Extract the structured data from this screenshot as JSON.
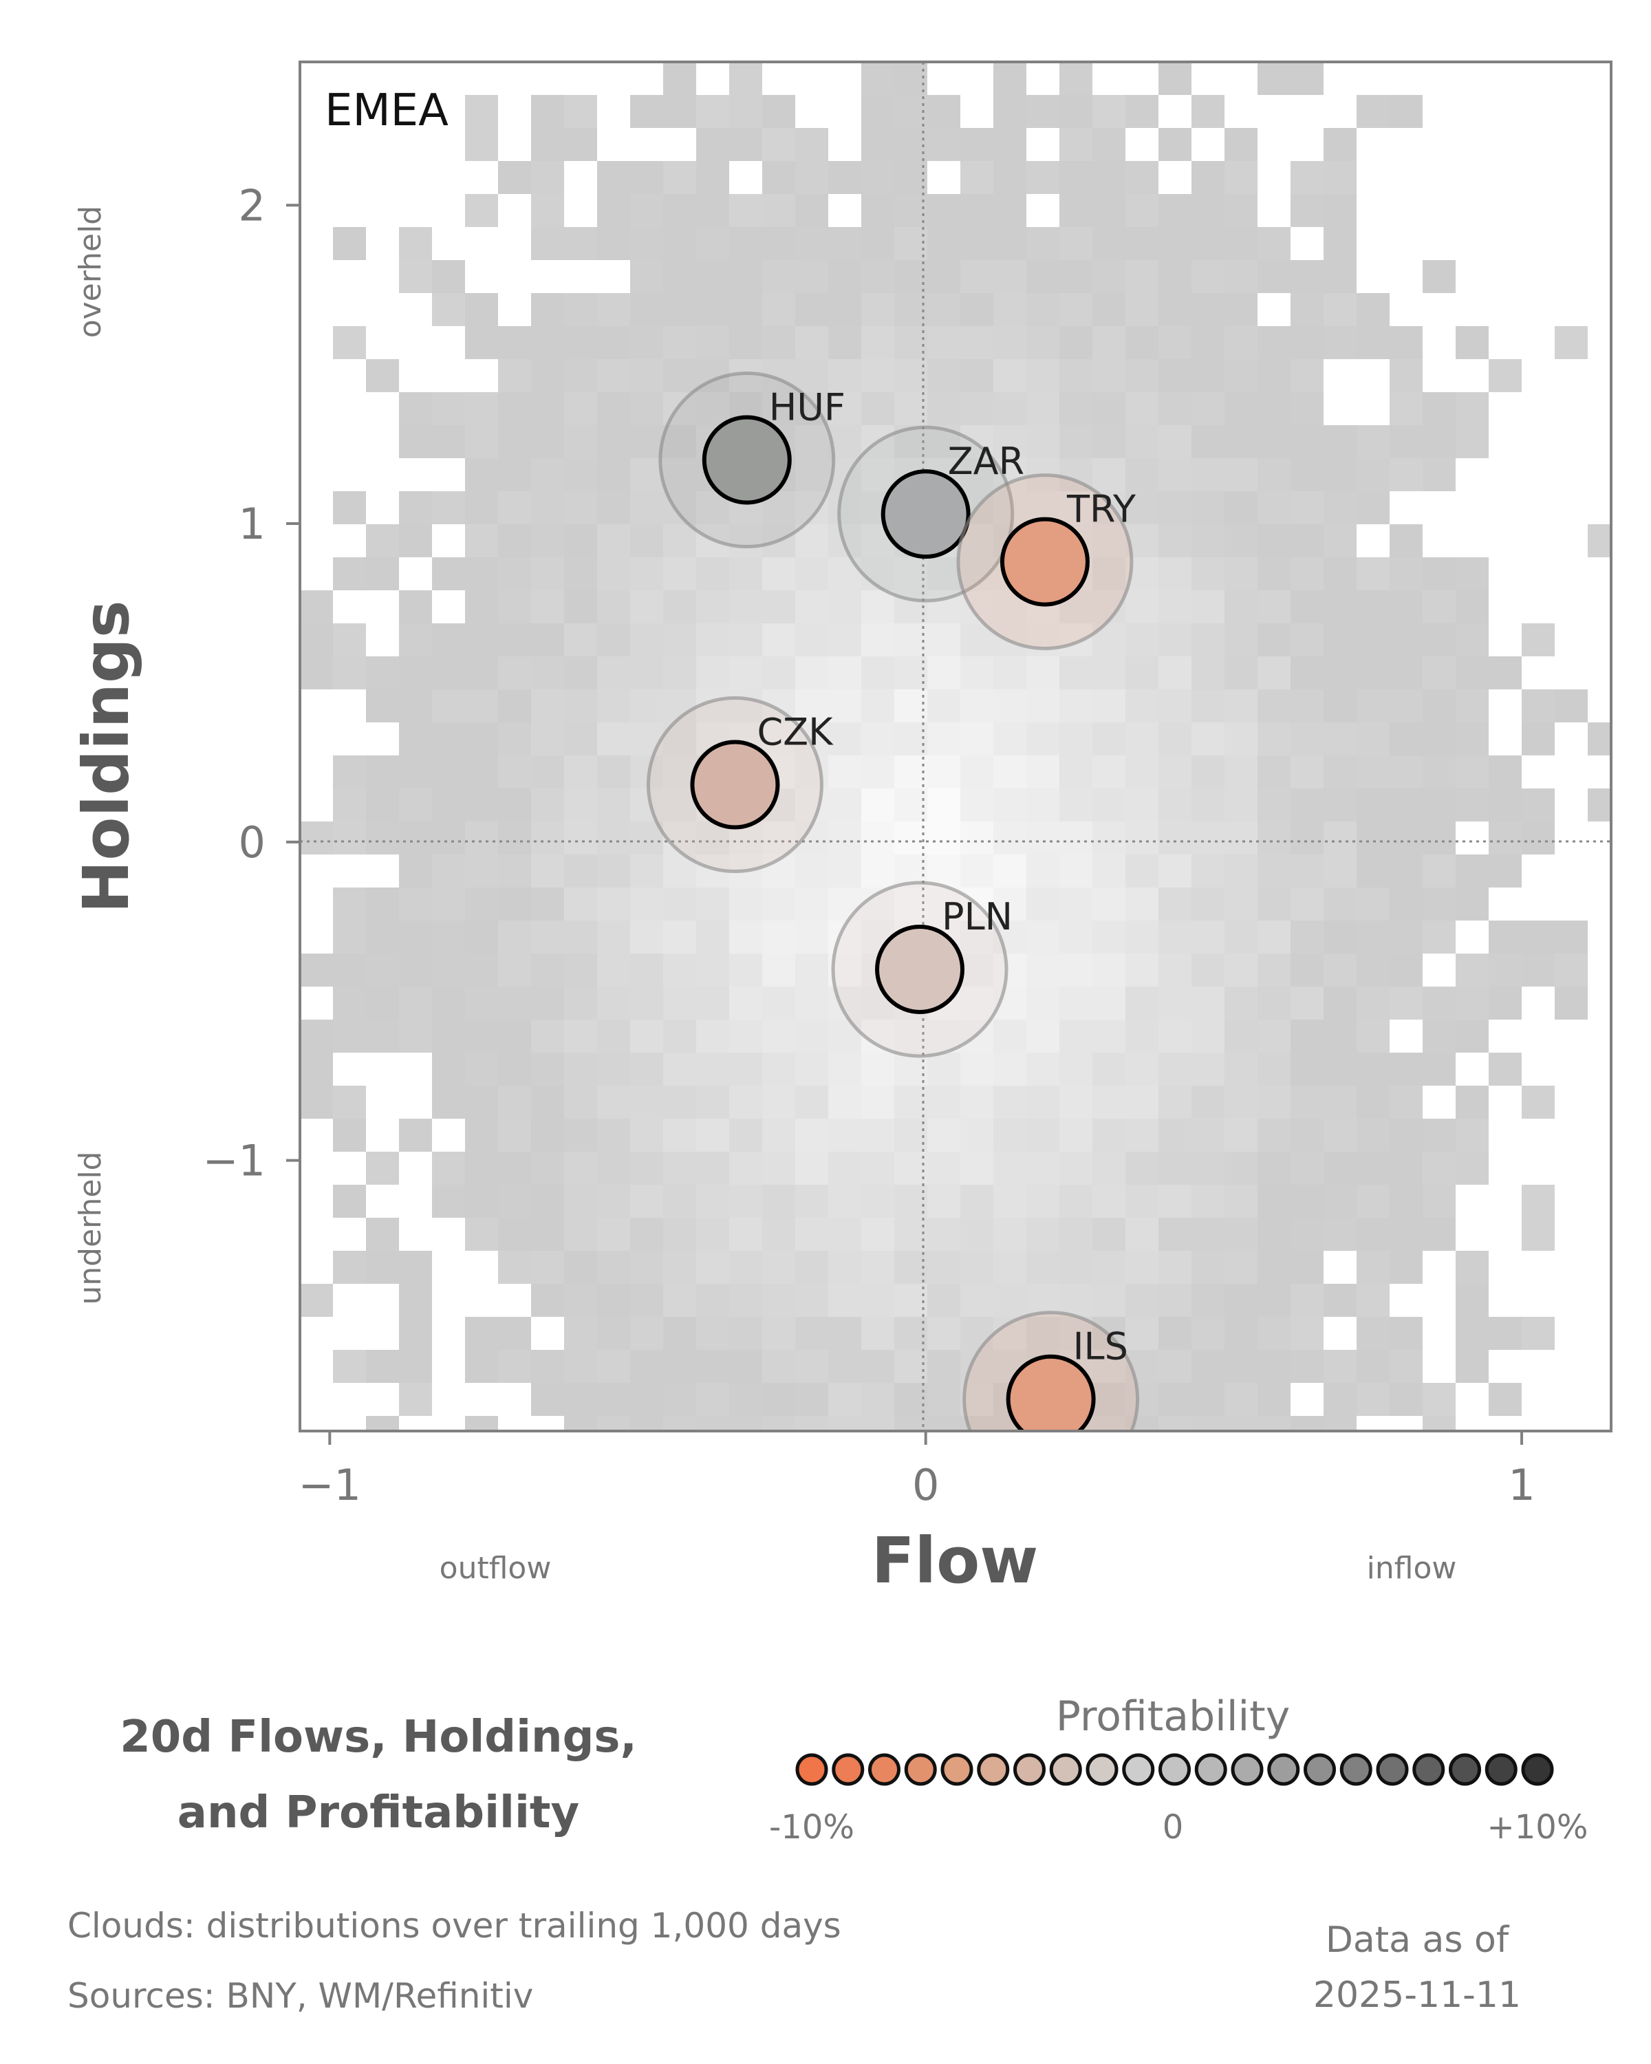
{
  "chart_data": {
    "type": "scatter",
    "panel_label": "EMEA",
    "xlabel": "Flow",
    "ylabel": "Holdings",
    "x_side_labels": {
      "left": "outflow",
      "right": "inflow"
    },
    "y_side_labels": {
      "top": "overheld",
      "bottom": "underheld"
    },
    "xlim": [
      -1.05,
      1.15
    ],
    "ylim": [
      -1.85,
      2.45
    ],
    "xticks": [
      -1,
      0,
      1
    ],
    "xtick_labels": [
      "−1",
      "0",
      "1"
    ],
    "yticks": [
      -1,
      0,
      1,
      2
    ],
    "ytick_labels": [
      "−1",
      "0",
      "1",
      "2"
    ],
    "reference_lines": {
      "x": 0,
      "y": 0
    },
    "points": [
      {
        "label": "HUF",
        "x": -0.3,
        "y": 1.2,
        "profitability": 5,
        "color": "#9a9c99"
      },
      {
        "label": "ZAR",
        "x": 0.0,
        "y": 1.03,
        "profitability": 3,
        "color": "#a9abad"
      },
      {
        "label": "TRY",
        "x": 0.2,
        "y": 0.88,
        "profitability": -7,
        "color": "#e39d80"
      },
      {
        "label": "CZK",
        "x": -0.32,
        "y": 0.18,
        "profitability": -3,
        "color": "#d5b4a7"
      },
      {
        "label": "PLN",
        "x": -0.01,
        "y": -0.4,
        "profitability": -1,
        "color": "#d7c4bd"
      },
      {
        "label": "ILS",
        "x": 0.21,
        "y": -1.75,
        "profitability": -7,
        "color": "#e39d80"
      }
    ],
    "background": "distribution clouds (grey heatmap)"
  },
  "legend": {
    "title_line1": "20d Flows, Holdings,",
    "title_line2": "and Profitability",
    "colorbar_title": "Profitability",
    "colorbar_min": "-10%",
    "colorbar_mid": "0",
    "colorbar_max": "+10%",
    "colors": [
      "#f07548",
      "#ec7d54",
      "#e8875f",
      "#e3926e",
      "#dea07f",
      "#d9ac93",
      "#d5b6a7",
      "#d3c0b6",
      "#d1cac5",
      "#cdcdcd",
      "#c3c3c3",
      "#b7b8b7",
      "#aaabaa",
      "#9c9d9c",
      "#8e8f8e",
      "#7f807f",
      "#6f706f",
      "#5f605f",
      "#4f504f",
      "#404140",
      "#343534"
    ]
  },
  "footer": {
    "clouds": "Clouds:  distributions over trailing 1,000 days",
    "sources": "Sources:  BNY, WM/Refinitiv",
    "asof_line1": "Data as of",
    "asof_line2": "2025-11-11"
  }
}
